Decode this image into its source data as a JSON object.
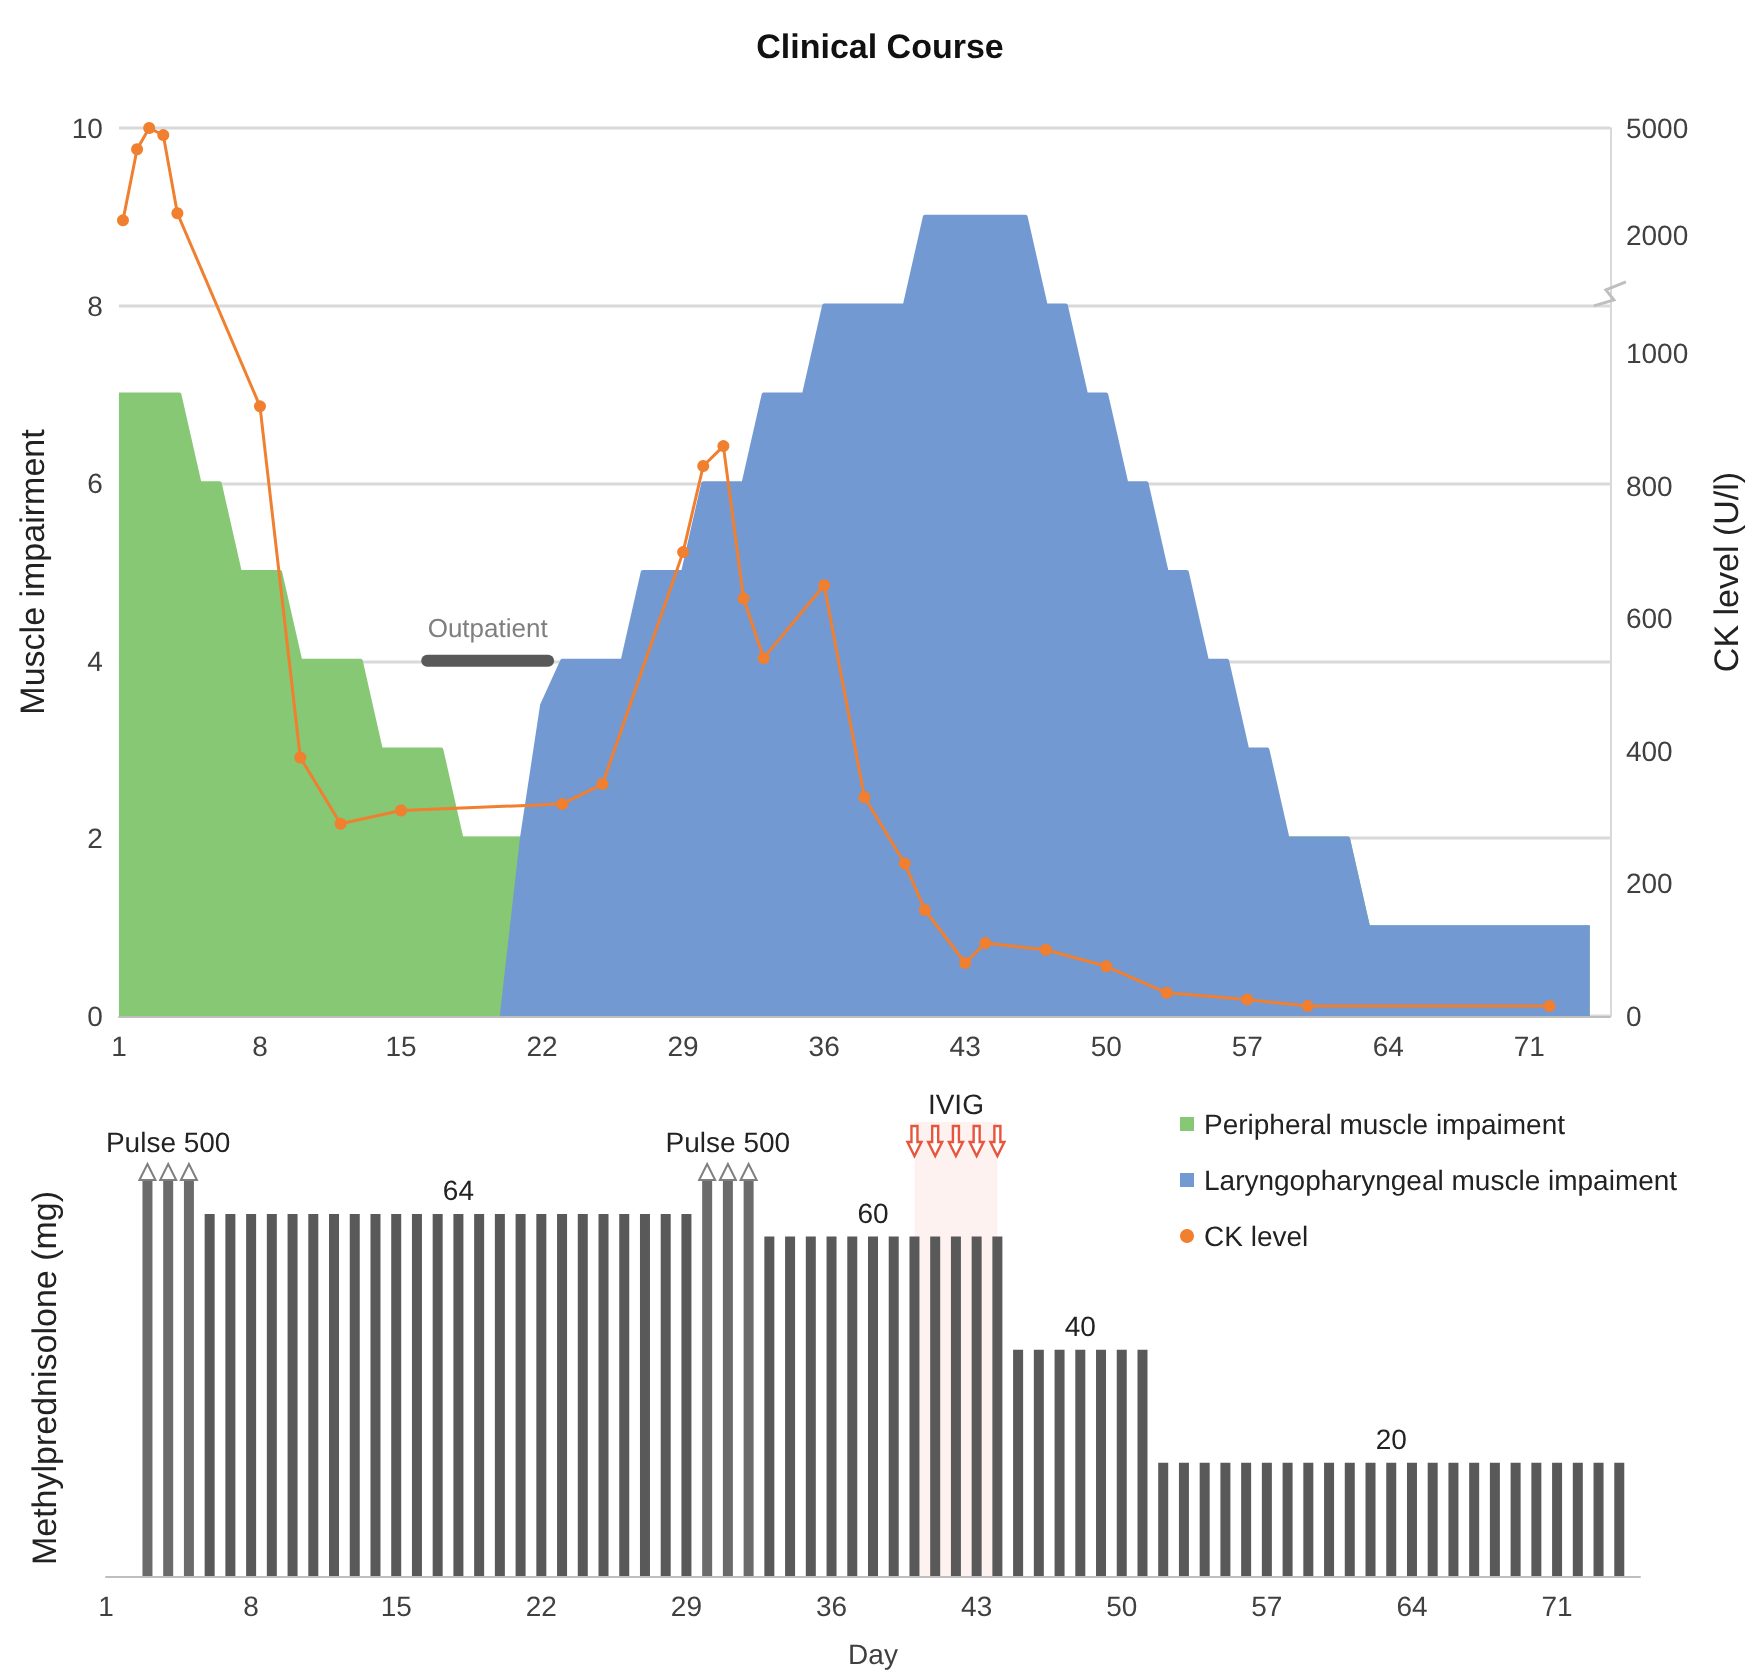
{
  "chart_data": [
    {
      "type": "area",
      "title": "Clinical Course",
      "ylabel": "Muscle impairment",
      "y2label": "CK level (U/l)",
      "legend": "bottom right",
      "grid": "y",
      "xlim": [
        1,
        75
      ],
      "xticks": [
        1,
        8,
        15,
        22,
        29,
        36,
        43,
        50,
        57,
        64,
        71
      ],
      "ylim": [
        0,
        10
      ],
      "yticks": [
        0,
        2,
        4,
        6,
        8,
        10
      ],
      "y2lim": [
        0,
        1340
      ],
      "y2ticks": [
        0,
        200,
        400,
        600,
        800,
        1000
      ],
      "y3lim": [
        -20000,
        5000
      ],
      "y3ticks": [
        2000,
        5000
      ],
      "x": [
        1,
        2,
        3,
        4,
        5,
        6,
        7,
        8,
        9,
        10,
        11,
        12,
        13,
        14,
        15,
        16,
        17,
        18,
        19,
        20,
        21,
        22,
        23,
        24,
        25,
        26,
        27,
        28,
        29,
        30,
        31,
        32,
        33,
        34,
        35,
        36,
        37,
        38,
        39,
        40,
        41,
        42,
        43,
        44,
        45,
        46,
        47,
        48,
        49,
        50,
        51,
        52,
        53,
        54,
        55,
        56,
        57,
        58,
        59,
        60,
        61,
        62,
        63,
        64,
        65,
        66,
        67,
        68,
        69,
        70,
        71,
        72,
        73,
        74
      ],
      "series": [
        {
          "name": "Peripheral muscle impaiment",
          "color": "#86c874",
          "values": [
            7,
            7,
            7,
            7,
            6,
            6,
            5,
            5,
            5,
            4,
            4,
            4,
            4,
            3,
            3,
            3,
            3,
            2,
            2,
            2,
            2,
            2,
            2,
            2,
            2,
            2,
            2,
            2,
            2,
            2,
            2,
            2,
            2,
            2,
            2,
            2,
            2,
            2,
            2,
            2,
            2,
            2,
            2,
            2,
            2,
            2,
            2,
            2,
            2,
            2,
            2,
            2,
            2,
            2,
            2,
            2,
            2,
            2,
            2,
            2,
            2,
            2,
            1,
            1,
            1,
            1,
            1,
            1,
            1,
            1,
            1,
            1,
            1,
            1
          ]
        },
        {
          "name": "Laryngopharyngeal muscle impaiment",
          "color": "#7399d2",
          "values": [
            null,
            null,
            null,
            null,
            null,
            null,
            null,
            null,
            null,
            null,
            null,
            null,
            null,
            null,
            null,
            null,
            null,
            null,
            null,
            0,
            2,
            3.5,
            4,
            4,
            4,
            4,
            5,
            5,
            5,
            6,
            6,
            6,
            7,
            7,
            7,
            8,
            8,
            8,
            8,
            8,
            9,
            9,
            9,
            9,
            9,
            9,
            8,
            8,
            7,
            7,
            6,
            6,
            5,
            5,
            4,
            4,
            3,
            3,
            2,
            2,
            2,
            2,
            1,
            1,
            1,
            1,
            1,
            1,
            1,
            1,
            1,
            1,
            1,
            1
          ]
        },
        {
          "type": "line",
          "axis": "y3",
          "marker": "circle",
          "color": "#f07f2f",
          "x": [
            1.2,
            1.9,
            2.5,
            3.2,
            3.9
          ],
          "values": [
            2400,
            4400,
            5000,
            4800,
            2600
          ]
        },
        {
          "name": "CK level",
          "type": "line",
          "axis": "y2",
          "marker": "circle",
          "color": "#f07f2f",
          "x": [
            8,
            10,
            12,
            15,
            23,
            25,
            29,
            30,
            31,
            32,
            33,
            36,
            38,
            40,
            41,
            43,
            44,
            47,
            50,
            53,
            57,
            60,
            72
          ],
          "values": [
            920,
            390,
            290,
            310,
            320,
            350,
            700,
            830,
            860,
            630,
            540,
            650,
            330,
            230,
            160,
            80,
            110,
            100,
            75,
            35,
            25,
            15,
            15
          ]
        },
        {
          "name": "Outpatient",
          "type": "line",
          "marker": "none",
          "color": "#595959",
          "x": [
            16.3,
            22.3
          ],
          "values": [
            4,
            4
          ]
        }
      ]
    },
    {
      "type": "bar",
      "xlabel": "Day",
      "ylabel": "Methylprednisolone (mg)",
      "tick_labels": "x",
      "xlim": [
        1,
        75
      ],
      "xticks": [
        1,
        8,
        15,
        22,
        29,
        36,
        43,
        50,
        57,
        64,
        71
      ],
      "series": [
        {
          "color": "#6b6b6b",
          "axis": "y2",
          "x": [
            3,
            4,
            5,
            30,
            31,
            32
          ],
          "values": [
            500,
            500,
            500,
            500,
            500,
            500
          ],
          "value_labels": [
            null,
            "Pulse 500",
            null,
            null,
            "Pulse 500",
            null
          ]
        },
        {
          "color": "#595959",
          "x": [
            6,
            7,
            8,
            9,
            10,
            11,
            12,
            13,
            14,
            15,
            16,
            17,
            18,
            19,
            20,
            21,
            22,
            23,
            24,
            25,
            26,
            27,
            28,
            29,
            33,
            34,
            35,
            36,
            37,
            38,
            39,
            40,
            41,
            42,
            43,
            44,
            45,
            46,
            47,
            48,
            49,
            50,
            51,
            52,
            53,
            54,
            55,
            56,
            57,
            58,
            59,
            60,
            61,
            62,
            63,
            64,
            65,
            66,
            67,
            68,
            69,
            70,
            71,
            72,
            73,
            74
          ],
          "values": [
            64,
            64,
            64,
            64,
            64,
            64,
            64,
            64,
            64,
            64,
            64,
            64,
            64,
            64,
            64,
            64,
            64,
            64,
            64,
            64,
            64,
            64,
            64,
            64,
            60,
            60,
            60,
            60,
            60,
            60,
            60,
            60,
            60,
            60,
            60,
            60,
            40,
            40,
            40,
            40,
            40,
            40,
            40,
            20,
            20,
            20,
            20,
            20,
            20,
            20,
            20,
            20,
            20,
            20,
            20,
            20,
            20,
            20,
            20,
            20,
            20,
            20,
            20,
            20,
            20,
            20
          ],
          "value_labels": [
            null,
            null,
            null,
            null,
            null,
            null,
            null,
            null,
            null,
            null,
            null,
            null,
            "64",
            null,
            null,
            null,
            null,
            null,
            null,
            null,
            null,
            null,
            null,
            null,
            null,
            null,
            null,
            null,
            null,
            "60",
            null,
            null,
            null,
            null,
            null,
            null,
            null,
            null,
            null,
            "40",
            null,
            null,
            null,
            null,
            null,
            null,
            null,
            null,
            null,
            null,
            null,
            null,
            null,
            null,
            "20",
            null,
            null,
            null,
            null,
            null,
            null,
            null,
            null,
            null,
            null,
            null
          ]
        }
      ],
      "bands": [
        {
          "axis": "x",
          "from": 40,
          "to": 44,
          "label": "IVIG",
          "color": "#e8553e"
        }
      ]
    }
  ]
}
